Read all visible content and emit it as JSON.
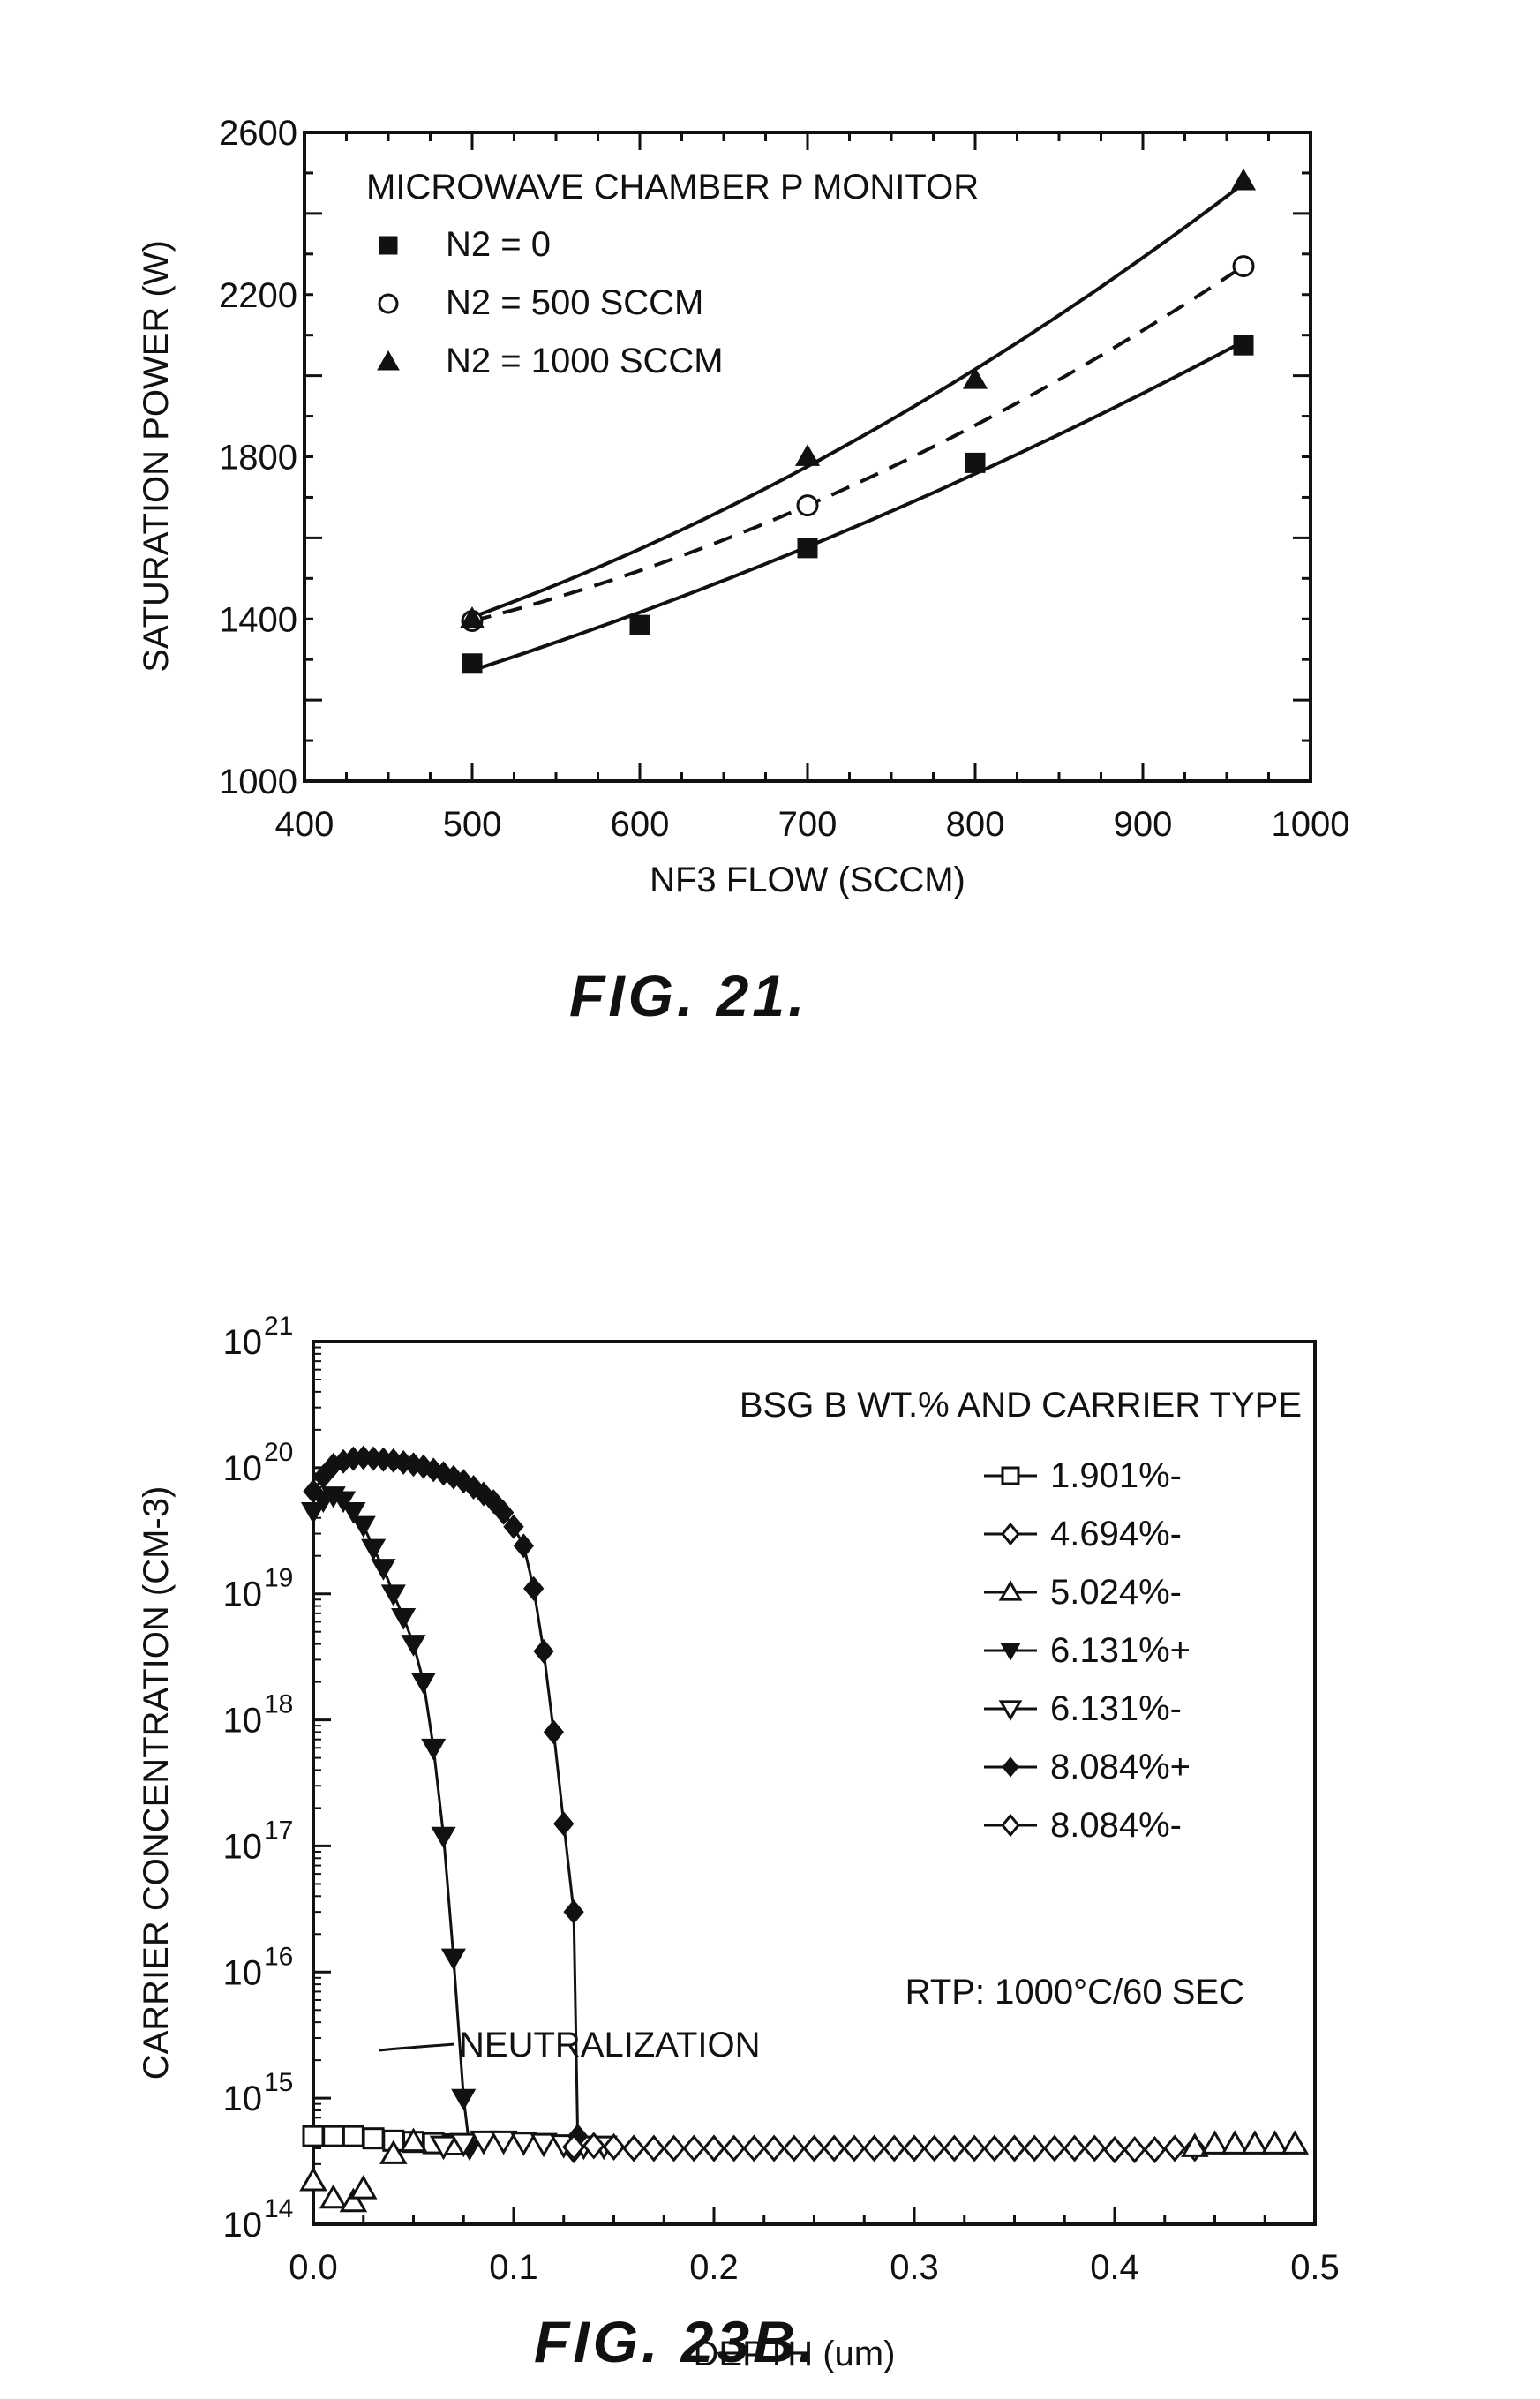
{
  "chart_data": [
    {
      "id": "fig21",
      "type": "scatter",
      "caption": "FIG. 21.",
      "xlabel": "NF3 FLOW (SCCM)",
      "ylabel": "SATURATION POWER (W)",
      "xlim": [
        400,
        1000
      ],
      "ylim": [
        1000,
        2600
      ],
      "xticks": [
        400,
        500,
        600,
        700,
        800,
        900,
        1000
      ],
      "yticks": [
        1000,
        1400,
        1800,
        2200,
        2600
      ],
      "legend_title": "MICROWAVE CHAMBER P MONITOR",
      "legend_position": "top-left",
      "grid": false,
      "series": [
        {
          "name": "N2 = 0",
          "marker": "filled-square",
          "line": "solid",
          "points": [
            [
              500,
              1290
            ],
            [
              600,
              1385
            ],
            [
              700,
              1575
            ],
            [
              800,
              1785
            ],
            [
              960,
              2075
            ]
          ]
        },
        {
          "name": "N2 = 500 SCCM",
          "marker": "open-circle",
          "line": "dashed",
          "points": [
            [
              500,
              1395
            ],
            [
              700,
              1680
            ],
            [
              960,
              2270
            ]
          ]
        },
        {
          "name": "N2 = 1000 SCCM",
          "marker": "filled-triangle",
          "line": "solid",
          "points": [
            [
              500,
              1400
            ],
            [
              700,
              1800
            ],
            [
              800,
              1990
            ],
            [
              960,
              2480
            ]
          ]
        }
      ]
    },
    {
      "id": "fig23b",
      "type": "scatter",
      "caption": "FIG. 23B.",
      "xlabel": "DEPTH (um)",
      "ylabel": "CARRIER CONCENTRATION (CM-3)",
      "xlim": [
        0.0,
        0.5
      ],
      "ylim": [
        100000000000000.0,
        1e+21
      ],
      "log_y": true,
      "xticks": [
        0.0,
        0.1,
        0.2,
        0.3,
        0.4,
        0.5
      ],
      "xtick_labels": [
        "0.0",
        "0.1",
        "0.2",
        "0.3",
        "0.4",
        "0.5"
      ],
      "yticks": [
        14,
        15,
        16,
        17,
        18,
        19,
        20,
        21
      ],
      "legend_title": "BSG B WT.% AND CARRIER TYPE",
      "legend_position": "top-right",
      "annotations": [
        "RTP: 1000°C/60 SEC",
        "NEUTRALIZATION"
      ],
      "grid": false,
      "series": [
        {
          "name": "1.901%-",
          "marker": "open-square",
          "points": [
            [
              0.0,
              500000000000000.0
            ],
            [
              0.01,
              500000000000000.0
            ],
            [
              0.02,
              500000000000000.0
            ],
            [
              0.03,
              480000000000000.0
            ],
            [
              0.04,
              460000000000000.0
            ],
            [
              0.05,
              450000000000000.0
            ],
            [
              0.06,
              440000000000000.0
            ],
            [
              0.07,
              430000000000000.0
            ]
          ]
        },
        {
          "name": "4.694%-",
          "marker": "open-diamond",
          "points": [
            [
              0.13,
              390000000000000.0
            ],
            [
              0.16,
              400000000000000.0
            ],
            [
              0.2,
              400000000000000.0
            ],
            [
              0.25,
              400000000000000.0
            ],
            [
              0.3,
              400000000000000.0
            ],
            [
              0.35,
              400000000000000.0
            ],
            [
              0.4,
              390000000000000.0
            ],
            [
              0.44,
              400000000000000.0
            ]
          ]
        },
        {
          "name": "5.024%-",
          "marker": "open-triangle",
          "points": [
            [
              0.0,
              220000000000000.0
            ],
            [
              0.01,
              160000000000000.0
            ],
            [
              0.02,
              150000000000000.0
            ],
            [
              0.025,
              190000000000000.0
            ],
            [
              0.04,
              360000000000000.0
            ],
            [
              0.05,
              450000000000000.0
            ],
            [
              0.44,
              410000000000000.0
            ],
            [
              0.45,
              430000000000000.0
            ],
            [
              0.46,
              430000000000000.0
            ],
            [
              0.47,
              430000000000000.0
            ],
            [
              0.48,
              430000000000000.0
            ],
            [
              0.49,
              430000000000000.0
            ]
          ]
        },
        {
          "name": "6.131%+",
          "marker": "filled-down-triangle",
          "line": "solid",
          "points": [
            [
              0.0,
              4.5e+19
            ],
            [
              0.005,
              5.5e+19
            ],
            [
              0.01,
              6e+19
            ],
            [
              0.015,
              5.5e+19
            ],
            [
              0.02,
              4.5e+19
            ],
            [
              0.025,
              3.5e+19
            ],
            [
              0.03,
              2.3e+19
            ],
            [
              0.035,
              1.6e+19
            ],
            [
              0.04,
              1e+19
            ],
            [
              0.045,
              6.5e+18
            ],
            [
              0.05,
              4e+18
            ],
            [
              0.055,
              2e+18
            ],
            [
              0.06,
              6e+17
            ],
            [
              0.065,
              1.2e+17
            ],
            [
              0.07,
              1.3e+16
            ],
            [
              0.075,
              1000000000000000.0
            ],
            [
              0.078,
              400000000000000.0
            ]
          ]
        },
        {
          "name": "6.131%-",
          "marker": "open-down-triangle",
          "points": [
            [
              0.065,
              420000000000000.0
            ],
            [
              0.075,
              440000000000000.0
            ],
            [
              0.085,
              460000000000000.0
            ],
            [
              0.095,
              460000000000000.0
            ],
            [
              0.105,
              450000000000000.0
            ],
            [
              0.115,
              440000000000000.0
            ],
            [
              0.125,
              430000000000000.0
            ],
            [
              0.135,
              420000000000000.0
            ],
            [
              0.145,
              420000000000000.0
            ]
          ]
        },
        {
          "name": "8.084%+",
          "marker": "filled-diamond",
          "line": "solid",
          "points": [
            [
              0.0,
              6.5e+19
            ],
            [
              0.005,
              8.5e+19
            ],
            [
              0.01,
              1.05e+20
            ],
            [
              0.015,
              1.12e+20
            ],
            [
              0.02,
              1.18e+20
            ],
            [
              0.025,
              1.2e+20
            ],
            [
              0.03,
              1.18e+20
            ],
            [
              0.035,
              1.16e+20
            ],
            [
              0.04,
              1.14e+20
            ],
            [
              0.045,
              1.1e+20
            ],
            [
              0.05,
              1.06e+20
            ],
            [
              0.055,
              1.02e+20
            ],
            [
              0.06,
              9.6e+19
            ],
            [
              0.065,
              9e+19
            ],
            [
              0.07,
              8.4e+19
            ],
            [
              0.075,
              7.8e+19
            ],
            [
              0.08,
              7e+19
            ],
            [
              0.085,
              6.2e+19
            ],
            [
              0.09,
              5.4e+19
            ],
            [
              0.095,
              4.4e+19
            ],
            [
              0.1,
              3.4e+19
            ],
            [
              0.105,
              2.4e+19
            ],
            [
              0.11,
              1.1e+19
            ],
            [
              0.115,
              3.5e+18
            ],
            [
              0.12,
              8e+17
            ],
            [
              0.125,
              1.5e+17
            ],
            [
              0.13,
              3e+16
            ],
            [
              0.132,
              500000000000000.0
            ]
          ]
        },
        {
          "name": "8.084%-",
          "marker": "open-diamond",
          "points": [
            [
              0.13,
              410000000000000.0
            ],
            [
              0.14,
              420000000000000.0
            ],
            [
              0.15,
              410000000000000.0
            ],
            [
              0.16,
              400000000000000.0
            ],
            [
              0.17,
              400000000000000.0
            ],
            [
              0.18,
              400000000000000.0
            ],
            [
              0.19,
              400000000000000.0
            ],
            [
              0.2,
              400000000000000.0
            ],
            [
              0.21,
              400000000000000.0
            ],
            [
              0.22,
              400000000000000.0
            ],
            [
              0.23,
              400000000000000.0
            ],
            [
              0.24,
              400000000000000.0
            ],
            [
              0.25,
              400000000000000.0
            ],
            [
              0.26,
              400000000000000.0
            ],
            [
              0.27,
              400000000000000.0
            ],
            [
              0.28,
              400000000000000.0
            ],
            [
              0.29,
              400000000000000.0
            ],
            [
              0.3,
              400000000000000.0
            ],
            [
              0.31,
              400000000000000.0
            ],
            [
              0.32,
              400000000000000.0
            ],
            [
              0.33,
              400000000000000.0
            ],
            [
              0.34,
              400000000000000.0
            ],
            [
              0.35,
              400000000000000.0
            ],
            [
              0.36,
              400000000000000.0
            ],
            [
              0.37,
              400000000000000.0
            ],
            [
              0.38,
              400000000000000.0
            ],
            [
              0.39,
              400000000000000.0
            ],
            [
              0.4,
              390000000000000.0
            ],
            [
              0.41,
              390000000000000.0
            ],
            [
              0.42,
              390000000000000.0
            ],
            [
              0.43,
              400000000000000.0
            ]
          ]
        }
      ]
    }
  ]
}
